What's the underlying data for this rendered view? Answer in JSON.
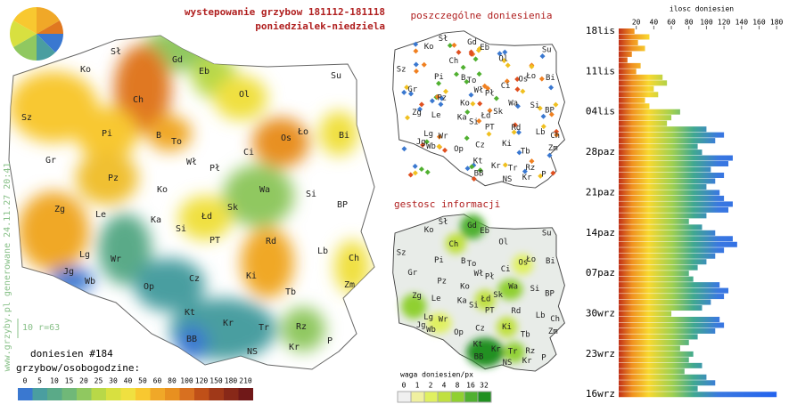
{
  "title": "wystepowanie grzybow 181112-181118",
  "subtitle": "poniedzialek-niedziela",
  "map2_title": "poszczególne doniesienia",
  "map3_title": "gestosc informacji",
  "cities": [
    "Sł",
    "Gd",
    "Eb",
    "Su",
    "Ko",
    "Ol",
    "Ch",
    "Sz",
    "Pi",
    "B",
    "To",
    "Os",
    "Ło",
    "Bi",
    "Ci",
    "Gr",
    "Wł",
    "Pł",
    "Pz",
    "Ko",
    "Wa",
    "Si",
    "Zg",
    "Le",
    "Ka",
    "Łd",
    "Sk",
    "BP",
    "Si",
    "PT",
    "Lg",
    "Wr",
    "Rd",
    "Lb",
    "Ch",
    "Jg",
    "Wb",
    "Op",
    "Cz",
    "Ki",
    "Tb",
    "Zm",
    "Kt",
    "Kr",
    "Tr",
    "Rz",
    "BB",
    "NS",
    "Kr",
    "P"
  ],
  "count_label": "doniesien #184",
  "scale_title": "grzybow/osobogodzine:",
  "side_text": "www.grzyby.pl generowane 24.11.27 20:41",
  "scale_note": "10 r=63",
  "weight_title": "waga doniesien/px",
  "scale": [
    {
      "label": "0",
      "color": "#3a78d0"
    },
    {
      "label": "5",
      "color": "#4a9ea0"
    },
    {
      "label": "10",
      "color": "#5aaa88"
    },
    {
      "label": "15",
      "color": "#70b878"
    },
    {
      "label": "20",
      "color": "#90c860"
    },
    {
      "label": "25",
      "color": "#b8d848"
    },
    {
      "label": "30",
      "color": "#d8e040"
    },
    {
      "label": "40",
      "color": "#f0e040"
    },
    {
      "label": "50",
      "color": "#f8c830"
    },
    {
      "label": "60",
      "color": "#f0a828"
    },
    {
      "label": "80",
      "color": "#e89020"
    },
    {
      "label": "100",
      "color": "#d87020"
    },
    {
      "label": "120",
      "color": "#c05018"
    },
    {
      "label": "150",
      "color": "#a03818"
    },
    {
      "label": "180",
      "color": "#882818"
    },
    {
      "label": "210",
      "color": "#701818"
    }
  ],
  "weight_scale": [
    {
      "label": "0",
      "color": "#f0f0f0"
    },
    {
      "label": "1",
      "color": "#f0f0a0"
    },
    {
      "label": "2",
      "color": "#e0f060"
    },
    {
      "label": "4",
      "color": "#c0e040"
    },
    {
      "label": "8",
      "color": "#90d030"
    },
    {
      "label": "16",
      "color": "#50b030"
    },
    {
      "label": "32",
      "color": "#209020"
    }
  ],
  "chart_data": {
    "type": "bar",
    "title": "ilosc doniesien",
    "categories": [
      "18lis",
      null,
      null,
      null,
      null,
      null,
      null,
      "11lis",
      null,
      null,
      null,
      null,
      null,
      null,
      "04lis",
      null,
      null,
      null,
      null,
      null,
      null,
      "28paz",
      null,
      null,
      null,
      null,
      null,
      null,
      "21paz",
      null,
      null,
      null,
      null,
      null,
      null,
      "14paz",
      null,
      null,
      null,
      null,
      null,
      null,
      "07paz",
      null,
      null,
      null,
      null,
      null,
      null,
      "30wrz",
      null,
      null,
      null,
      null,
      null,
      null,
      "23wrz",
      null,
      null,
      null,
      null,
      null,
      null,
      "16wrz"
    ],
    "values": [
      18,
      35,
      22,
      30,
      15,
      10,
      25,
      20,
      50,
      55,
      40,
      45,
      30,
      35,
      70,
      60,
      55,
      100,
      120,
      110,
      90,
      95,
      130,
      125,
      105,
      120,
      110,
      100,
      115,
      120,
      130,
      125,
      100,
      80,
      95,
      110,
      130,
      135,
      120,
      110,
      100,
      90,
      80,
      85,
      115,
      125,
      120,
      105,
      95,
      60,
      115,
      120,
      110,
      90,
      80,
      70,
      85,
      80,
      95,
      75,
      100,
      110,
      90,
      180
    ],
    "xlim": [
      0,
      190
    ],
    "xticks": [
      20,
      40,
      60,
      80,
      100,
      120,
      140,
      160,
      180
    ]
  }
}
